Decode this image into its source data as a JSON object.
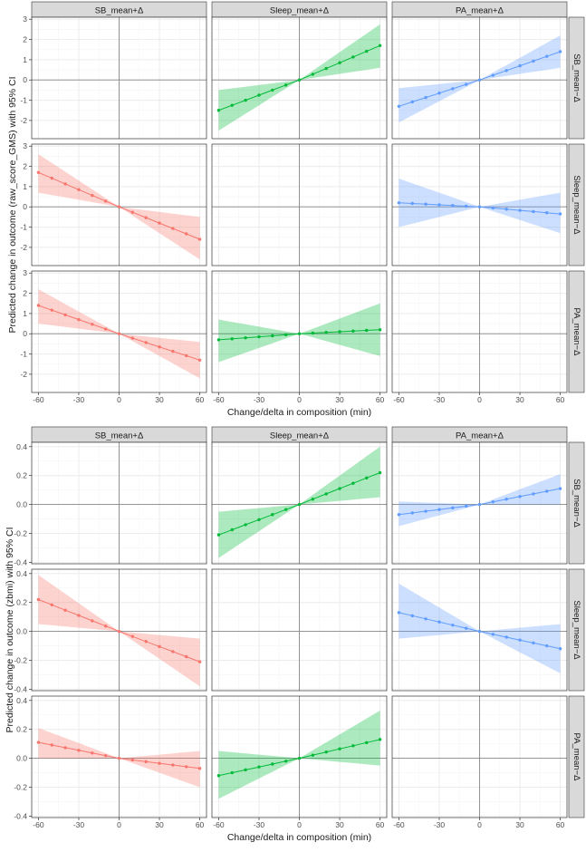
{
  "colors": {
    "sb": "#F8766D",
    "sleep": "#00BA38",
    "pa": "#619CFF",
    "strip_bg": "#D9D9D9",
    "grid_major": "#EBEBEB",
    "grid_minor": "#F5F5F5",
    "zero_line": "#888888",
    "panel_border": "#333333"
  },
  "chart_data": [
    {
      "type": "line",
      "facet_columns": [
        "SB_mean+Δ",
        "Sleep_mean+Δ",
        "PA_mean+Δ"
      ],
      "facet_rows": [
        "SB_mean−Δ",
        "Sleep_mean−Δ",
        "PA_mean−Δ"
      ],
      "xlabel": "Change/delta in composition (min)",
      "ylabel": "Predicted change in outcome (raw_score_GMS) with 95% CI",
      "x_ticks": [
        -60,
        -30,
        0,
        30,
        60
      ],
      "y_ticks": [
        -2,
        -1,
        0,
        1,
        2,
        3
      ],
      "xlim": [
        -65,
        65
      ],
      "ylim": [
        -2.9,
        3.1
      ],
      "x": [
        -60,
        -50,
        -40,
        -30,
        -20,
        -10,
        0,
        10,
        20,
        30,
        40,
        50,
        60
      ],
      "panels": [
        {
          "row": 0,
          "col": 1,
          "color_key": "sleep",
          "end": 1.7,
          "start": -1.5,
          "ci_end_hi": 2.75,
          "ci_end_lo": 0.6,
          "ci_start_hi": -0.5,
          "ci_start_lo": -2.5
        },
        {
          "row": 0,
          "col": 2,
          "color_key": "pa",
          "end": 1.4,
          "start": -1.3,
          "ci_end_hi": 2.2,
          "ci_end_lo": 0.6,
          "ci_start_hi": -0.4,
          "ci_start_lo": -2.1
        },
        {
          "row": 1,
          "col": 0,
          "color_key": "sb",
          "end": -1.6,
          "start": 1.7,
          "ci_end_hi": -0.5,
          "ci_end_lo": -2.6,
          "ci_start_hi": 2.6,
          "ci_start_lo": 0.7
        },
        {
          "row": 1,
          "col": 2,
          "color_key": "pa",
          "end": -0.35,
          "start": 0.2,
          "ci_end_hi": 0.7,
          "ci_end_lo": -1.3,
          "ci_start_hi": 1.4,
          "ci_start_lo": -1.0
        },
        {
          "row": 2,
          "col": 0,
          "color_key": "sb",
          "end": -1.3,
          "start": 1.4,
          "ci_end_hi": -0.4,
          "ci_end_lo": -2.2,
          "ci_start_hi": 2.2,
          "ci_start_lo": 0.5
        },
        {
          "row": 2,
          "col": 1,
          "color_key": "sleep",
          "end": 0.2,
          "start": -0.3,
          "ci_end_hi": 1.5,
          "ci_end_lo": -1.1,
          "ci_start_hi": 0.7,
          "ci_start_lo": -1.4
        }
      ]
    },
    {
      "type": "line",
      "facet_columns": [
        "SB_mean+Δ",
        "Sleep_mean+Δ",
        "PA_mean+Δ"
      ],
      "facet_rows": [
        "SB_mean−Δ",
        "Sleep_mean−Δ",
        "PA_mean−Δ"
      ],
      "xlabel": "Change/delta in composition (min)",
      "ylabel": "Predicted change in outcome (zbmi) with 95% CI",
      "x_ticks": [
        -60,
        -30,
        0,
        30,
        60
      ],
      "y_ticks": [
        -0.4,
        -0.2,
        0.0,
        0.2,
        0.4
      ],
      "y_tick_labels": [
        "-0.4",
        "-0.2",
        "0.0",
        "0.2",
        "0.4"
      ],
      "xlim": [
        -65,
        65
      ],
      "ylim": [
        -0.41,
        0.43
      ],
      "x": [
        -60,
        -50,
        -40,
        -30,
        -20,
        -10,
        0,
        10,
        20,
        30,
        40,
        50,
        60
      ],
      "panels": [
        {
          "row": 0,
          "col": 1,
          "color_key": "sleep",
          "end": 0.22,
          "start": -0.21,
          "ci_end_hi": 0.4,
          "ci_end_lo": 0.05,
          "ci_start_hi": -0.05,
          "ci_start_lo": -0.37
        },
        {
          "row": 0,
          "col": 2,
          "color_key": "pa",
          "end": 0.11,
          "start": -0.07,
          "ci_end_hi": 0.21,
          "ci_end_lo": 0.0,
          "ci_start_hi": 0.02,
          "ci_start_lo": -0.15
        },
        {
          "row": 1,
          "col": 0,
          "color_key": "sb",
          "end": -0.21,
          "start": 0.22,
          "ci_end_hi": -0.05,
          "ci_end_lo": -0.38,
          "ci_start_hi": 0.39,
          "ci_start_lo": 0.05
        },
        {
          "row": 1,
          "col": 2,
          "color_key": "pa",
          "end": -0.12,
          "start": 0.13,
          "ci_end_hi": 0.05,
          "ci_end_lo": -0.29,
          "ci_start_hi": 0.33,
          "ci_start_lo": -0.05
        },
        {
          "row": 2,
          "col": 0,
          "color_key": "sb",
          "end": -0.07,
          "start": 0.11,
          "ci_end_hi": 0.05,
          "ci_end_lo": -0.2,
          "ci_start_hi": 0.21,
          "ci_start_lo": 0.0
        },
        {
          "row": 2,
          "col": 1,
          "color_key": "sleep",
          "end": 0.13,
          "start": -0.12,
          "ci_end_hi": 0.33,
          "ci_end_lo": -0.05,
          "ci_start_hi": 0.05,
          "ci_start_lo": -0.28
        }
      ]
    }
  ]
}
